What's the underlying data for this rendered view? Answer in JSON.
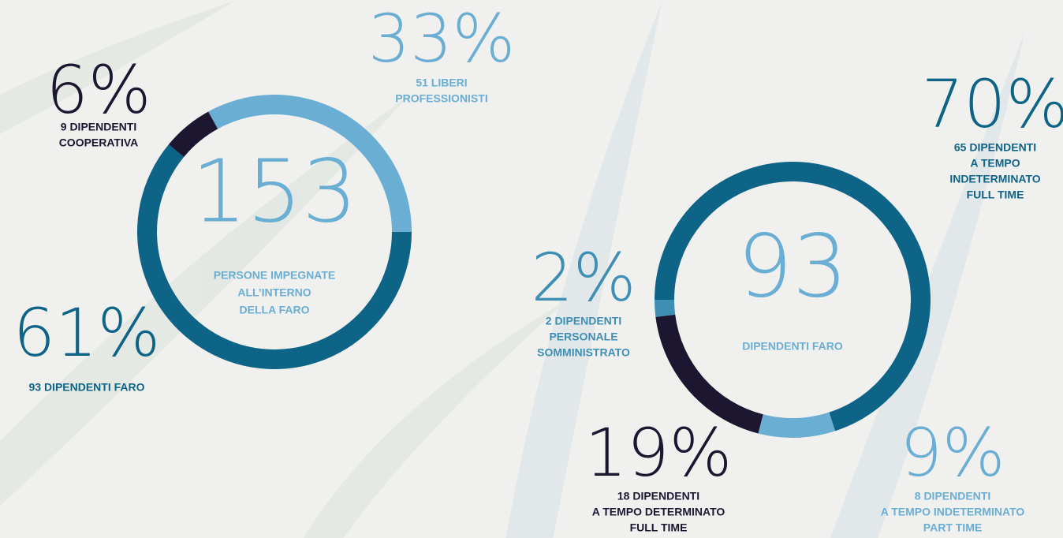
{
  "chart_data": [
    {
      "type": "donut",
      "center_value": 153,
      "center_label": [
        "PERSONE IMPEGNATE",
        "ALL’INTERNO",
        "DELLA FARO"
      ],
      "center_color": "#6aaed3",
      "values": [
        61,
        6,
        33
      ],
      "value_labels": [
        "61%",
        "6%",
        "33%"
      ],
      "labels": [
        [
          "93 DIPENDENTI FARO"
        ],
        [
          "9 DIPENDENTI",
          "COOPERATIVA"
        ],
        [
          "51 LIBERI",
          "PROFESSIONISTI"
        ]
      ],
      "colors": [
        "#0e6486",
        "#1c1631",
        "#6aaed3"
      ]
    },
    {
      "type": "donut",
      "center_value": 93,
      "center_label": [
        "DIPENDENTI FARO"
      ],
      "center_color": "#6aaed3",
      "values": [
        70,
        9,
        19,
        2
      ],
      "value_labels": [
        "70%",
        "9%",
        "19%",
        "2%"
      ],
      "labels": [
        [
          "65 DIPENDENTI",
          "A TEMPO",
          "INDETERMINATO",
          "FULL TIME"
        ],
        [
          "8 DIPENDENTI",
          "A TEMPO INDETERMINATO",
          "PART TIME"
        ],
        [
          "18 DIPENDENTI",
          "A TEMPO DETERMINATO",
          "FULL TIME"
        ],
        [
          "2 DIPENDENTI",
          "PERSONALE",
          "SOMMINISTRATO"
        ]
      ],
      "colors": [
        "#0e6486",
        "#6aaed3",
        "#1c1631",
        "#3f8fb5"
      ]
    }
  ]
}
